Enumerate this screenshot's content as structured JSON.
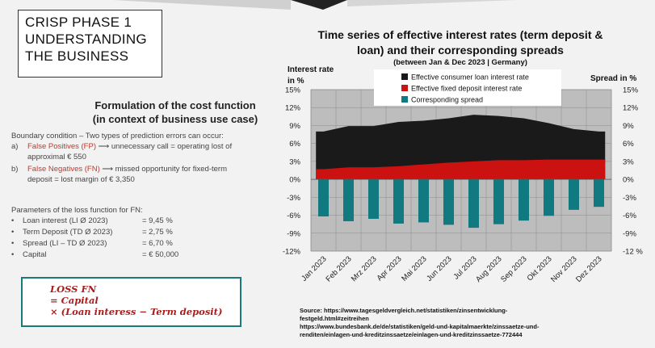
{
  "slide": {
    "title_line1": "CRISP PHASE 1",
    "title_line2": "UNDERSTANDING",
    "title_line3": "THE BUSINESS",
    "subheading_line1": "Formulation of the cost function",
    "subheading_line2": "(in context of business use case)",
    "boundary_intro": "Boundary condition – Two types of prediction errors can occur:",
    "case_a_marker": "a)",
    "case_a_term": "False Positives (FP)",
    "case_a_rest": " ⟶ unnecessary call = operating lost of",
    "case_a_cont": "approximal € 550",
    "case_b_marker": "b)",
    "case_b_term": "False Negatives (FN)",
    "case_b_rest": " ⟶ missed opportunity for fixed-term",
    "case_b_cont": "deposit = lost margin of € 3,350",
    "params_title": "Parameters of the loss function for FN:",
    "params": [
      {
        "name": "Loan interest (LI Ø 2023)",
        "value": "= 9,45 %"
      },
      {
        "name": "Term Deposit (TD Ø 2023)",
        "value": "= 2,75 %"
      },
      {
        "name": "Spread (LI – TD Ø 2023)",
        "value": "= 6,70 %"
      },
      {
        "name": "Capital",
        "value": "= € 50,000"
      }
    ],
    "loss_line1": "LOSS FN",
    "loss_line2": "= Capital",
    "loss_line3": "× (Loan interess  − Term deposit)",
    "source_line1": "Source: https://www.tagesgeldvergleich.net/statistiken/zinsentwicklung-",
    "source_line2": "festgeld.html#zeitreihen",
    "source_line3": "https://www.bundesbank.de/de/statistiken/geld-und-kapitalmaerkte/zinssaetze-und-",
    "source_line4": "renditen/einlagen-und-kreditzinssaetze/einlagen-und-kreditzinssaetze-772444"
  },
  "chart_data": {
    "type": "area",
    "title_line1": "Time series of effective interest rates (term deposit &",
    "title_line2": "loan) and their corresponding spreads",
    "subtitle": "(between Jan & Dec 2023 | Germany)",
    "ylabel_left_line1": "Interest rate",
    "ylabel_left_line2": "in %",
    "ylabel_right": "Spread in %",
    "categories": [
      "Jan 2023",
      "Feb 2023",
      "Mrz 2023",
      "Apr 2023",
      "Mai 2023",
      "Jun 2023",
      "Jul 2023",
      "Aug 2023",
      "Sep 2023",
      "Okt 2023",
      "Nov 2023",
      "Dez 2023"
    ],
    "ylim": [
      -12,
      15
    ],
    "yticks": [
      15,
      12,
      9,
      6,
      3,
      0,
      -3,
      -6,
      -9,
      -12
    ],
    "ytick_labels_left": [
      "15%",
      "12%",
      "9%",
      "6%",
      "3%",
      "0%",
      "-3%",
      "-6%",
      "-9%",
      "-12%"
    ],
    "ytick_labels_right": [
      "15%",
      "12%",
      "9%",
      "6%",
      "3%",
      "0%",
      "-3%",
      "-6%",
      "-9%",
      "-12 %"
    ],
    "series": [
      {
        "name": "Effective consumer loan interest rate",
        "type": "area",
        "color": "#1a1a1a",
        "values": [
          8.0,
          8.9,
          8.9,
          9.6,
          9.8,
          10.2,
          10.8,
          10.6,
          10.2,
          9.4,
          8.4,
          8.0
        ]
      },
      {
        "name": "Effective fixed deposit interest rate",
        "type": "area",
        "color": "#cc1111",
        "values": [
          1.7,
          2.0,
          2.0,
          2.2,
          2.5,
          2.8,
          3.0,
          3.2,
          3.2,
          3.3,
          3.3,
          3.3
        ]
      },
      {
        "name": "Corresponding spread",
        "type": "bar",
        "color": "#117a80",
        "values": [
          -6.2,
          -7.0,
          -6.6,
          -7.4,
          -7.2,
          -7.6,
          -8.1,
          -7.5,
          -6.9,
          -6.1,
          -5.1,
          -4.6
        ]
      }
    ],
    "grid": true,
    "legend_position": "top"
  },
  "colors": {
    "plot_bg": "#bdbdbd",
    "accent_teal": "#117a80",
    "accent_red": "#c0392b"
  }
}
